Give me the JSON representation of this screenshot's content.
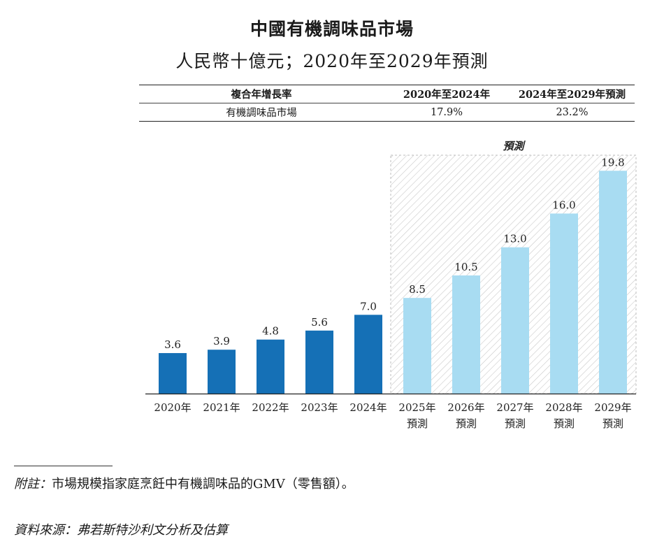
{
  "header": {
    "title": "中國有機調味品市場",
    "subtitle": "人民幣十億元；2020年至2029年預測"
  },
  "cagr_table": {
    "headers": [
      "複合年增長率",
      "2020年至2024年",
      "2024年至2029年預測"
    ],
    "row": {
      "label": "有機調味品市場",
      "cagr_2020_2024": "17.9%",
      "cagr_2024_2029": "23.2%"
    }
  },
  "chart_data": {
    "type": "bar",
    "title": "中國有機調味品市場",
    "subtitle": "人民幣十億元；2020年至2029年預測",
    "categories": [
      [
        "2020年"
      ],
      [
        "2021年"
      ],
      [
        "2022年"
      ],
      [
        "2023年"
      ],
      [
        "2024年"
      ],
      [
        "2025年",
        "預測"
      ],
      [
        "2026年",
        "預測"
      ],
      [
        "2027年",
        "預測"
      ],
      [
        "2028年",
        "預測"
      ],
      [
        "2029年",
        "預測"
      ]
    ],
    "values": [
      3.6,
      3.9,
      4.8,
      5.6,
      7.0,
      8.5,
      10.5,
      13.0,
      16.0,
      19.8
    ],
    "value_labels": [
      "3.6",
      "3.9",
      "4.8",
      "5.6",
      "7.0",
      "8.5",
      "10.5",
      "13.0",
      "16.0",
      "19.8"
    ],
    "forecast": [
      false,
      false,
      false,
      false,
      false,
      true,
      true,
      true,
      true,
      true
    ],
    "forecast_label": "預測",
    "ylim": [
      0,
      20.5
    ],
    "xlabel": "",
    "ylabel": "",
    "grid": false,
    "colors": {
      "historical": "#1570b6",
      "forecast": "#a8dcf2",
      "hatch": "#c9c9c9"
    }
  },
  "footnotes": {
    "note_label": "附註：",
    "note_text": "市場規模指家庭烹飪中有機調味品的GMV（零售額）。",
    "source": "資料來源：弗若斯特沙利文分析及估算"
  }
}
